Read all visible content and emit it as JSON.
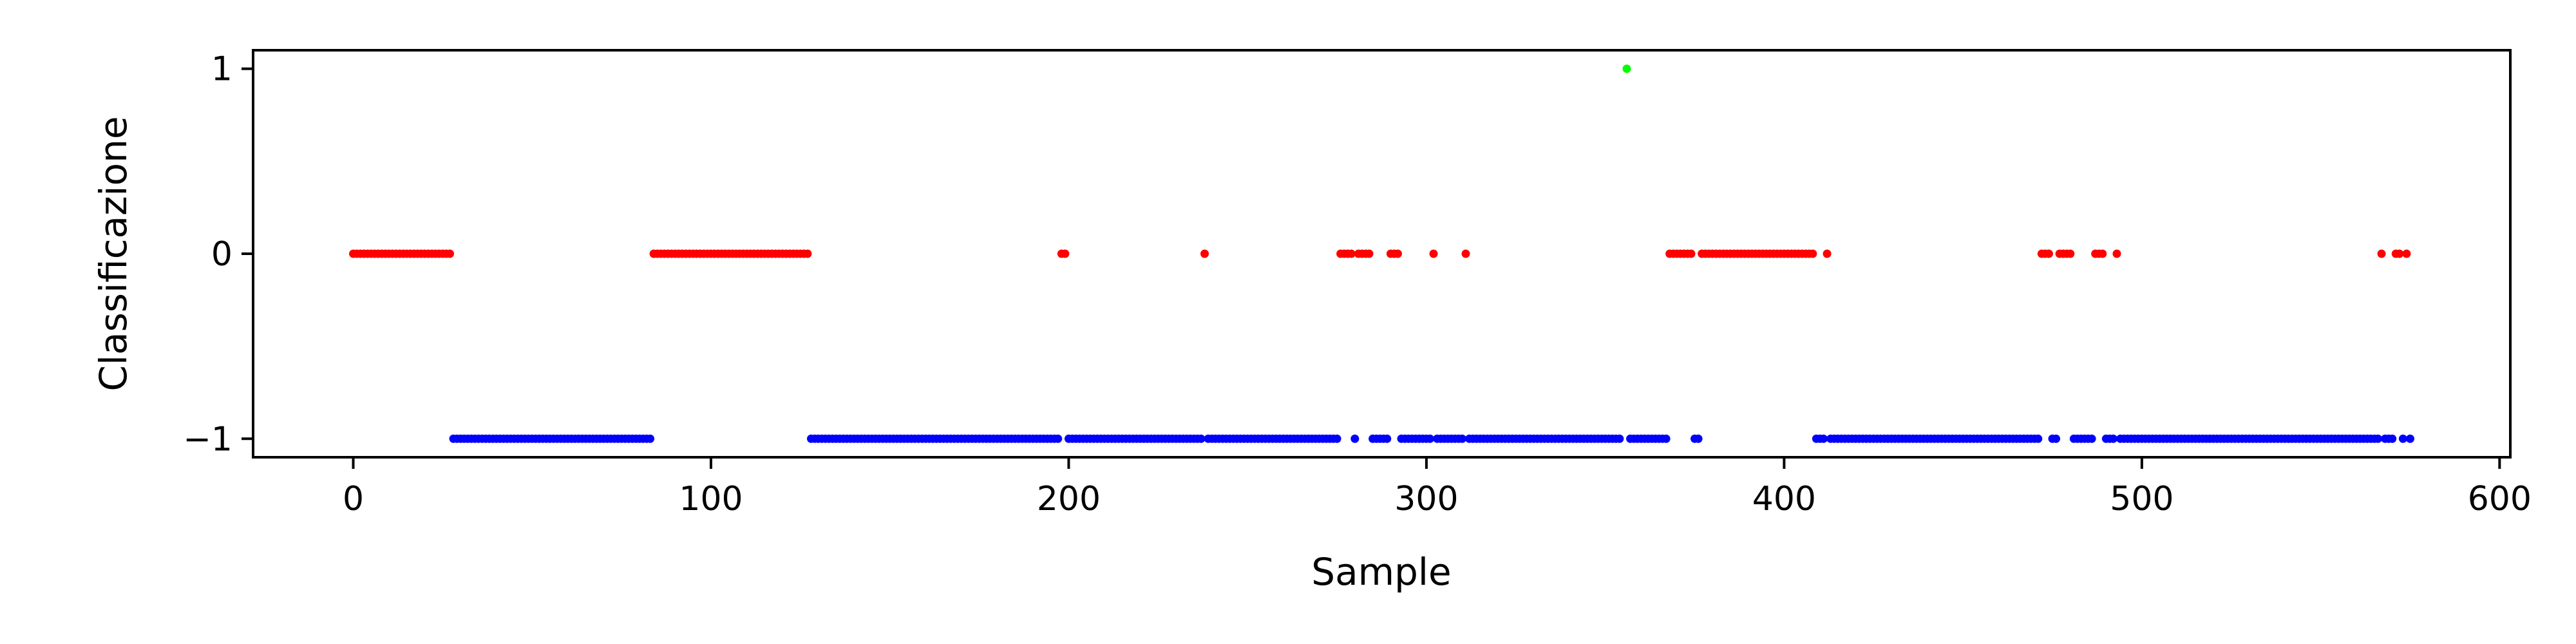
{
  "chart_data": {
    "type": "scatter",
    "title": "",
    "xlabel": "Sample",
    "ylabel": "Classificazione",
    "xlim": [
      -28,
      603
    ],
    "ylim": [
      -1.1,
      1.1
    ],
    "x_ticks": [
      0,
      100,
      200,
      300,
      400,
      500,
      600
    ],
    "y_ticks": [
      1,
      0,
      -1
    ],
    "y_tick_labels": [
      "1",
      "0",
      "−1"
    ],
    "grid": false,
    "legend": "none",
    "colors": {
      "-1": "#0000ff",
      "0": "#ff0000",
      "1": "#00ff00"
    },
    "segments": [
      {
        "y": 0,
        "x_start": 0,
        "x_end": 27
      },
      {
        "y": -1,
        "x_start": 28,
        "x_end": 83
      },
      {
        "y": 0,
        "x_start": 84,
        "x_end": 127
      },
      {
        "y": -1,
        "x_start": 128,
        "x_end": 197
      },
      {
        "y": 0,
        "x_start": 198,
        "x_end": 199
      },
      {
        "y": -1,
        "x_start": 200,
        "x_end": 237
      },
      {
        "y": 0,
        "x_start": 238,
        "x_end": 238
      },
      {
        "y": -1,
        "x_start": 239,
        "x_end": 275
      },
      {
        "y": 0,
        "x_start": 276,
        "x_end": 279
      },
      {
        "y": -1,
        "x_start": 280,
        "x_end": 280
      },
      {
        "y": 0,
        "x_start": 281,
        "x_end": 284
      },
      {
        "y": -1,
        "x_start": 285,
        "x_end": 289
      },
      {
        "y": 0,
        "x_start": 290,
        "x_end": 292
      },
      {
        "y": -1,
        "x_start": 293,
        "x_end": 301
      },
      {
        "y": 0,
        "x_start": 302,
        "x_end": 302
      },
      {
        "y": -1,
        "x_start": 303,
        "x_end": 310
      },
      {
        "y": 0,
        "x_start": 311,
        "x_end": 311
      },
      {
        "y": -1,
        "x_start": 312,
        "x_end": 354
      },
      {
        "y": 1,
        "x_start": 356,
        "x_end": 356
      },
      {
        "y": -1,
        "x_start": 357,
        "x_end": 367
      },
      {
        "y": 0,
        "x_start": 368,
        "x_end": 374
      },
      {
        "y": -1,
        "x_start": 375,
        "x_end": 376
      },
      {
        "y": 0,
        "x_start": 377,
        "x_end": 408
      },
      {
        "y": -1,
        "x_start": 409,
        "x_end": 411
      },
      {
        "y": 0,
        "x_start": 412,
        "x_end": 412
      },
      {
        "y": -1,
        "x_start": 413,
        "x_end": 471
      },
      {
        "y": 0,
        "x_start": 472,
        "x_end": 474
      },
      {
        "y": -1,
        "x_start": 475,
        "x_end": 476
      },
      {
        "y": 0,
        "x_start": 477,
        "x_end": 480
      },
      {
        "y": -1,
        "x_start": 481,
        "x_end": 486
      },
      {
        "y": 0,
        "x_start": 487,
        "x_end": 489
      },
      {
        "y": -1,
        "x_start": 490,
        "x_end": 492
      },
      {
        "y": 0,
        "x_start": 493,
        "x_end": 493
      },
      {
        "y": -1,
        "x_start": 494,
        "x_end": 566
      },
      {
        "y": 0,
        "x_start": 567,
        "x_end": 567
      },
      {
        "y": -1,
        "x_start": 568,
        "x_end": 570
      },
      {
        "y": 0,
        "x_start": 571,
        "x_end": 572
      },
      {
        "y": -1,
        "x_start": 573,
        "x_end": 573
      },
      {
        "y": 0,
        "x_start": 574,
        "x_end": 574
      },
      {
        "y": -1,
        "x_start": 575,
        "x_end": 575
      }
    ]
  }
}
